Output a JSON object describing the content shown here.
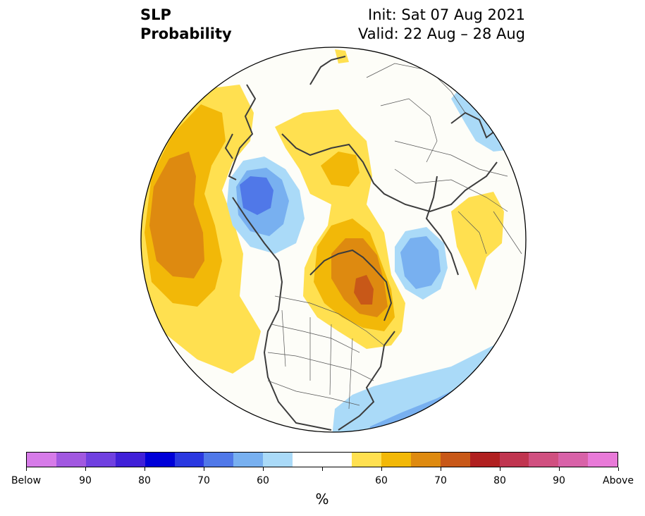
{
  "title": {
    "line1": "SLP",
    "line2": "Probability"
  },
  "init": {
    "line1": "Init: Sat 07 Aug 2021",
    "line2": "Valid: 22 Aug – 28 Aug"
  },
  "colorbar": {
    "unit": "%",
    "colors": [
      "#d67be8",
      "#a158e0",
      "#7040e0",
      "#4020d8",
      "#0000d8",
      "#2a38e0",
      "#5078e8",
      "#78b0f0",
      "#aadaf8",
      "#ffffff",
      "#ffffff",
      "#ffe050",
      "#f2b808",
      "#de8a10",
      "#c85818",
      "#b02020",
      "#c03550",
      "#d05080",
      "#d862a8",
      "#e87ad8"
    ],
    "labels": [
      "Below",
      "90",
      "80",
      "70",
      "60",
      "60",
      "70",
      "80",
      "90",
      "Above"
    ]
  },
  "legend": {
    "below_color": "#78b0f0",
    "above_color": "#f2b808"
  }
}
